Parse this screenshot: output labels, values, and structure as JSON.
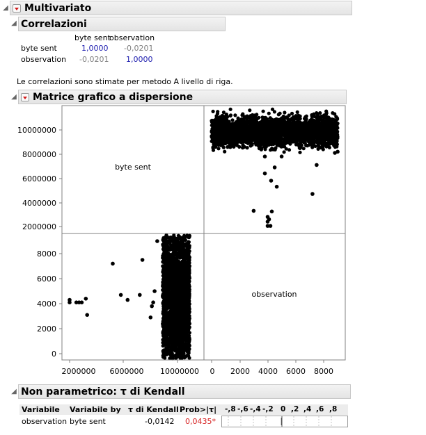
{
  "report": {
    "title": "Multivariato"
  },
  "correlations": {
    "title": "Correlazioni",
    "columns": [
      "byte sent",
      "observation"
    ],
    "rows": [
      {
        "label": "byte sent",
        "values": [
          "1,0000",
          "-0,0201"
        ]
      },
      {
        "label": "observation",
        "values": [
          "-0,0201",
          "1,0000"
        ]
      }
    ],
    "note": "Le correlazioni sono stimate per metodo A livello di riga."
  },
  "scatter_matrix": {
    "title": "Matrice grafico a dispersione",
    "diag_labels": [
      "byte sent",
      "observation"
    ],
    "y_ticks_top": [
      "10000000",
      "8000000",
      "6000000",
      "4000000",
      "2000000"
    ],
    "y_ticks_bottom": [
      "8000",
      "6000",
      "4000",
      "2000",
      "0"
    ],
    "x_ticks_left": [
      "2000000",
      "6000000",
      "10000000"
    ],
    "x_ticks_right": [
      "0",
      "2000",
      "4000",
      "6000",
      "8000"
    ]
  },
  "kendall": {
    "title": "Non parametrico: τ di Kendall",
    "headers": [
      "Variabile",
      "Variabile by",
      "τ di Kendall",
      "Prob>|τ|"
    ],
    "scale_labels": [
      "-,8",
      "-,6",
      "-,4",
      "-,2",
      "0",
      ",2",
      ",4",
      ",6",
      ",8"
    ],
    "row": {
      "var": "observation",
      "var_by": "byte sent",
      "tau": "-0,0142",
      "prob": "0,0435*"
    },
    "bar_value": -0.0142
  },
  "colors": {
    "header_bg": "#e8e8e8",
    "value_blue": "#2020b0",
    "value_grey": "#808080",
    "significant_red": "#d62020",
    "points": "#000000"
  },
  "chart_data": [
    {
      "type": "scatter",
      "title": "",
      "xlabel": "observation",
      "ylabel": "byte sent",
      "xlim": [
        -500,
        9300
      ],
      "ylim": [
        1500000,
        11400000
      ],
      "dense_region": {
        "x": [
          0,
          9000
        ],
        "y": [
          8900000,
          10900000
        ]
      },
      "points": [
        [
          3000,
          3300000
        ],
        [
          4000,
          2800000
        ],
        [
          4100,
          2600000
        ],
        [
          4000,
          2400000
        ],
        [
          4000,
          2050000
        ],
        [
          4200,
          2050000
        ],
        [
          4300,
          3250000
        ],
        [
          3800,
          6400000
        ],
        [
          4500,
          6900000
        ],
        [
          4250,
          5800000
        ],
        [
          4650,
          5300000
        ],
        [
          7200,
          4700000
        ],
        [
          7500,
          7100000
        ],
        [
          3800,
          7800000
        ],
        [
          5000,
          7800000
        ],
        [
          8800,
          8100000
        ],
        [
          9000,
          8200000
        ]
      ]
    },
    {
      "type": "scatter",
      "title": "",
      "xlabel": "byte sent",
      "ylabel": "observation",
      "xlim": [
        1500000,
        11400000
      ],
      "ylim": [
        -500,
        9300
      ],
      "dense_region": {
        "x": [
          8900000,
          10900000
        ],
        "y": [
          0,
          9000
        ]
      },
      "points": [
        [
          2000000,
          4300.0
        ],
        [
          2000000,
          4100
        ],
        [
          2500000,
          4100
        ],
        [
          2700000,
          4100
        ],
        [
          2900000,
          4100
        ],
        [
          3200000,
          4400
        ],
        [
          3300000,
          3100
        ],
        [
          5200000,
          7200
        ],
        [
          5800000,
          4700
        ],
        [
          6300000,
          4300
        ],
        [
          7200000,
          4700
        ],
        [
          7400000,
          7500
        ],
        [
          8000000,
          2900
        ],
        [
          8200000,
          4100
        ],
        [
          8500000,
          9000
        ],
        [
          8100000,
          3800
        ],
        [
          8300000,
          5000
        ]
      ]
    }
  ]
}
